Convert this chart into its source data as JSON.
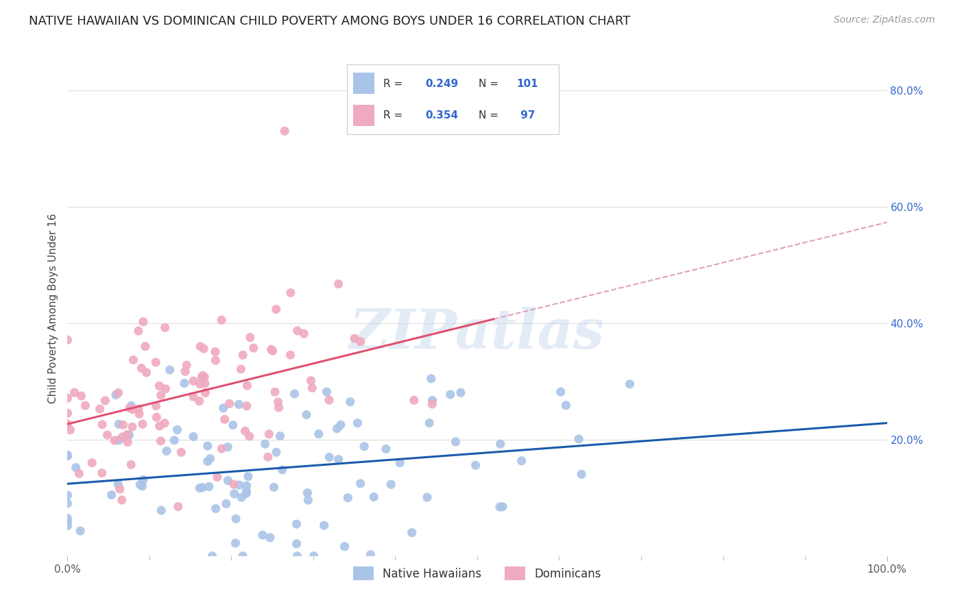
{
  "title": "NATIVE HAWAIIAN VS DOMINICAN CHILD POVERTY AMONG BOYS UNDER 16 CORRELATION CHART",
  "source": "Source: ZipAtlas.com",
  "ylabel": "Child Poverty Among Boys Under 16",
  "x_tick_labels": [
    "0.0%",
    "100.0%"
  ],
  "y_tick_labels_right": [
    "20.0%",
    "40.0%",
    "60.0%",
    "80.0%"
  ],
  "legend_bottom": [
    "Native Hawaiians",
    "Dominicans"
  ],
  "blue_color": "#aac4e8",
  "pink_color": "#f0aabf",
  "blue_line_color": "#1a5aab",
  "pink_line_color": "#e05070",
  "pink_dashed_color": "#e0a0b8",
  "legend_text_color": "#3366cc",
  "R_blue": 0.249,
  "N_blue": 101,
  "R_pink": 0.354,
  "N_pink": 97,
  "xlim": [
    0.0,
    1.0
  ],
  "ylim": [
    0.0,
    0.85
  ],
  "background_color": "#ffffff",
  "grid_color": "#dddddd",
  "watermark": "ZIPatlas",
  "title_fontsize": 13,
  "axis_label_fontsize": 11,
  "tick_fontsize": 11,
  "source_fontsize": 10
}
